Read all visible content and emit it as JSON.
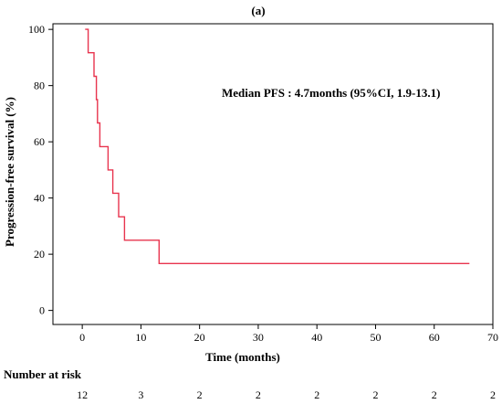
{
  "chart_data": {
    "type": "line",
    "panel_label": "(a)",
    "title": "",
    "xlabel": "Time (months)",
    "ylabel": "Progression-free survival (%)",
    "xlim": [
      -5,
      70
    ],
    "ylim": [
      -5,
      102
    ],
    "xticks": [
      0,
      10,
      20,
      30,
      40,
      50,
      60,
      70
    ],
    "yticks": [
      0,
      20,
      40,
      60,
      80,
      100
    ],
    "grid": false,
    "annotation": "Median PFS : 4.7months (95%CI, 1.9-13.1)",
    "series": [
      {
        "color": "#e8344e",
        "step": true,
        "x": [
          0.5,
          1.0,
          2.0,
          2.4,
          2.6,
          3.0,
          4.0,
          4.4,
          5.2,
          6.2,
          7.2,
          13.1,
          66.0
        ],
        "y": [
          100,
          91.7,
          83.3,
          75.0,
          66.7,
          58.3,
          58.3,
          50.0,
          41.7,
          33.3,
          25.0,
          16.7,
          16.7
        ]
      }
    ],
    "risk_table": {
      "title": "Number at risk",
      "times": [
        0,
        10,
        20,
        30,
        40,
        50,
        60,
        70
      ],
      "values": [
        "12",
        "3",
        "2",
        "2",
        "2",
        "2",
        "2",
        "2"
      ]
    }
  }
}
